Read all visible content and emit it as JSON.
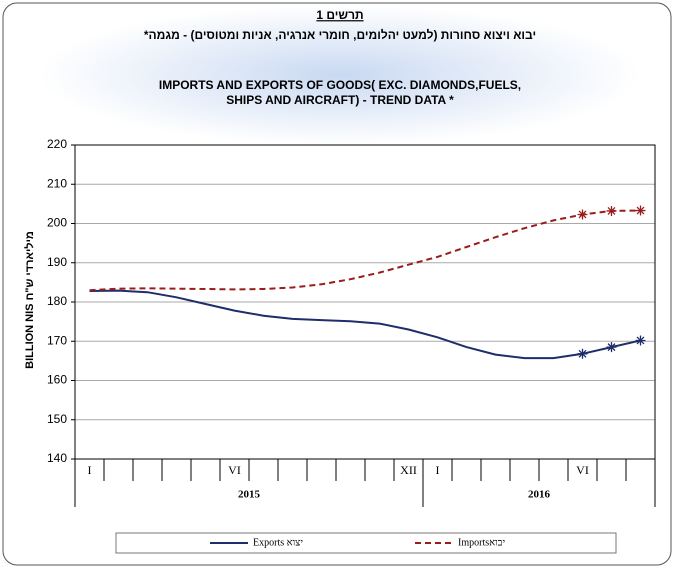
{
  "chart_data": {
    "type": "line",
    "title_he_label": "תרשים 1",
    "title_he": "יבוא ויצוא סחורות (למעט יהלומים, חומרי אנרגיה, אניות ומטוסים) - מגמה*",
    "title_en": [
      "IMPORTS AND EXPORTS OF GOODS( EXC. DIAMONDS,FUELS,",
      "SHIPS AND AIRCRAFT) - TREND DATA *"
    ],
    "ylabel": "BILLION NIS מיליארדי ש\"ח",
    "categories": [
      "I",
      null,
      null,
      null,
      null,
      "VI",
      null,
      null,
      null,
      null,
      null,
      "XII",
      "I",
      null,
      null,
      null,
      null,
      "VI",
      null,
      null
    ],
    "groups": [
      "2015",
      "2016"
    ],
    "series": [
      {
        "name": "Exports יצוא",
        "color": "#1f2d6b",
        "dash": false,
        "values": [
          182.8,
          182.9,
          182.5,
          181.2,
          179.5,
          177.8,
          176.5,
          175.7,
          175.4,
          175.1,
          174.5,
          173,
          171,
          168.5,
          166.6,
          165.7,
          165.7,
          166.8,
          168.5,
          170.2
        ]
      },
      {
        "name": "Importsיבוא",
        "color": "#9b1c1c",
        "dash": true,
        "values": [
          183,
          183.4,
          183.5,
          183.4,
          183.3,
          183.2,
          183.3,
          183.7,
          184.5,
          185.8,
          187.5,
          189.5,
          191.5,
          194,
          196.5,
          198.8,
          200.8,
          202.3,
          203.2,
          203.3
        ]
      }
    ],
    "ylim": [
      140,
      220
    ],
    "yticks": [
      140,
      150,
      160,
      170,
      180,
      190,
      200,
      210,
      220
    ],
    "grid": true,
    "legend": "bottom"
  }
}
